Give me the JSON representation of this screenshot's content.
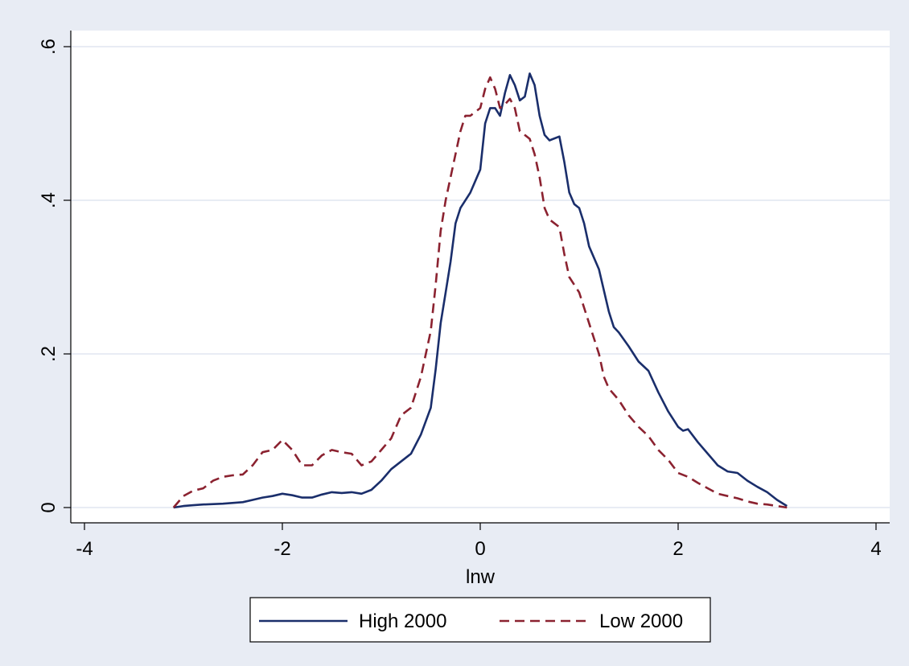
{
  "chart_data": {
    "type": "line",
    "title": "",
    "xlabel": "lnw",
    "ylabel": "",
    "xlim": [
      -4,
      4
    ],
    "ylim": [
      0,
      0.6
    ],
    "x_ticks": [
      -4,
      -2,
      0,
      2,
      4
    ],
    "x_tick_labels": [
      "-4",
      "-2",
      "0",
      "2",
      "4"
    ],
    "y_ticks": [
      0,
      0.2,
      0.4,
      0.6
    ],
    "y_tick_labels": [
      "0",
      ".2",
      ".4",
      ".6"
    ],
    "grid": "horizontal",
    "legend_position": "bottom",
    "series": [
      {
        "name": "High 2000",
        "color": "#1a2e6b",
        "style": "solid",
        "points": [
          [
            -3.1,
            0.0
          ],
          [
            -3.0,
            0.002
          ],
          [
            -2.9,
            0.003
          ],
          [
            -2.8,
            0.004
          ],
          [
            -2.6,
            0.005
          ],
          [
            -2.4,
            0.007
          ],
          [
            -2.3,
            0.01
          ],
          [
            -2.2,
            0.013
          ],
          [
            -2.1,
            0.015
          ],
          [
            -2.0,
            0.018
          ],
          [
            -1.9,
            0.016
          ],
          [
            -1.8,
            0.013
          ],
          [
            -1.7,
            0.013
          ],
          [
            -1.6,
            0.017
          ],
          [
            -1.5,
            0.02
          ],
          [
            -1.4,
            0.019
          ],
          [
            -1.3,
            0.02
          ],
          [
            -1.2,
            0.018
          ],
          [
            -1.1,
            0.023
          ],
          [
            -1.0,
            0.035
          ],
          [
            -0.9,
            0.05
          ],
          [
            -0.8,
            0.06
          ],
          [
            -0.7,
            0.07
          ],
          [
            -0.6,
            0.095
          ],
          [
            -0.5,
            0.13
          ],
          [
            -0.45,
            0.18
          ],
          [
            -0.4,
            0.24
          ],
          [
            -0.35,
            0.28
          ],
          [
            -0.3,
            0.32
          ],
          [
            -0.25,
            0.37
          ],
          [
            -0.2,
            0.39
          ],
          [
            -0.1,
            0.41
          ],
          [
            0.0,
            0.44
          ],
          [
            0.05,
            0.5
          ],
          [
            0.1,
            0.52
          ],
          [
            0.15,
            0.52
          ],
          [
            0.2,
            0.51
          ],
          [
            0.25,
            0.54
          ],
          [
            0.3,
            0.563
          ],
          [
            0.35,
            0.55
          ],
          [
            0.4,
            0.53
          ],
          [
            0.45,
            0.535
          ],
          [
            0.5,
            0.565
          ],
          [
            0.55,
            0.55
          ],
          [
            0.6,
            0.51
          ],
          [
            0.65,
            0.485
          ],
          [
            0.7,
            0.478
          ],
          [
            0.8,
            0.483
          ],
          [
            0.85,
            0.45
          ],
          [
            0.9,
            0.41
          ],
          [
            0.95,
            0.395
          ],
          [
            1.0,
            0.39
          ],
          [
            1.05,
            0.37
          ],
          [
            1.1,
            0.34
          ],
          [
            1.2,
            0.31
          ],
          [
            1.3,
            0.255
          ],
          [
            1.35,
            0.235
          ],
          [
            1.4,
            0.228
          ],
          [
            1.5,
            0.21
          ],
          [
            1.6,
            0.19
          ],
          [
            1.7,
            0.178
          ],
          [
            1.8,
            0.15
          ],
          [
            1.9,
            0.125
          ],
          [
            2.0,
            0.105
          ],
          [
            2.05,
            0.1
          ],
          [
            2.1,
            0.102
          ],
          [
            2.2,
            0.085
          ],
          [
            2.3,
            0.07
          ],
          [
            2.4,
            0.055
          ],
          [
            2.5,
            0.047
          ],
          [
            2.6,
            0.045
          ],
          [
            2.7,
            0.035
          ],
          [
            2.8,
            0.027
          ],
          [
            2.9,
            0.02
          ],
          [
            3.0,
            0.01
          ],
          [
            3.1,
            0.002
          ]
        ]
      },
      {
        "name": "Low 2000",
        "color": "#8b2230",
        "style": "dashed",
        "points": [
          [
            -3.1,
            0.0
          ],
          [
            -3.0,
            0.015
          ],
          [
            -2.9,
            0.022
          ],
          [
            -2.8,
            0.025
          ],
          [
            -2.7,
            0.035
          ],
          [
            -2.6,
            0.04
          ],
          [
            -2.5,
            0.042
          ],
          [
            -2.4,
            0.043
          ],
          [
            -2.3,
            0.055
          ],
          [
            -2.2,
            0.072
          ],
          [
            -2.1,
            0.075
          ],
          [
            -2.0,
            0.088
          ],
          [
            -1.9,
            0.075
          ],
          [
            -1.8,
            0.055
          ],
          [
            -1.7,
            0.055
          ],
          [
            -1.6,
            0.068
          ],
          [
            -1.5,
            0.075
          ],
          [
            -1.4,
            0.072
          ],
          [
            -1.3,
            0.07
          ],
          [
            -1.2,
            0.055
          ],
          [
            -1.1,
            0.06
          ],
          [
            -1.0,
            0.075
          ],
          [
            -0.9,
            0.09
          ],
          [
            -0.8,
            0.12
          ],
          [
            -0.7,
            0.13
          ],
          [
            -0.6,
            0.17
          ],
          [
            -0.5,
            0.23
          ],
          [
            -0.45,
            0.29
          ],
          [
            -0.4,
            0.36
          ],
          [
            -0.35,
            0.4
          ],
          [
            -0.3,
            0.43
          ],
          [
            -0.2,
            0.49
          ],
          [
            -0.15,
            0.51
          ],
          [
            -0.1,
            0.51
          ],
          [
            0.0,
            0.52
          ],
          [
            0.05,
            0.545
          ],
          [
            0.1,
            0.56
          ],
          [
            0.15,
            0.545
          ],
          [
            0.2,
            0.52
          ],
          [
            0.25,
            0.525
          ],
          [
            0.3,
            0.532
          ],
          [
            0.35,
            0.52
          ],
          [
            0.4,
            0.49
          ],
          [
            0.45,
            0.485
          ],
          [
            0.5,
            0.48
          ],
          [
            0.55,
            0.46
          ],
          [
            0.6,
            0.43
          ],
          [
            0.65,
            0.39
          ],
          [
            0.7,
            0.375
          ],
          [
            0.8,
            0.365
          ],
          [
            0.85,
            0.33
          ],
          [
            0.9,
            0.3
          ],
          [
            0.95,
            0.29
          ],
          [
            1.0,
            0.28
          ],
          [
            1.1,
            0.24
          ],
          [
            1.2,
            0.2
          ],
          [
            1.25,
            0.17
          ],
          [
            1.3,
            0.155
          ],
          [
            1.4,
            0.14
          ],
          [
            1.5,
            0.12
          ],
          [
            1.6,
            0.105
          ],
          [
            1.7,
            0.093
          ],
          [
            1.8,
            0.075
          ],
          [
            1.9,
            0.062
          ],
          [
            2.0,
            0.045
          ],
          [
            2.1,
            0.04
          ],
          [
            2.2,
            0.032
          ],
          [
            2.3,
            0.025
          ],
          [
            2.4,
            0.018
          ],
          [
            2.5,
            0.015
          ],
          [
            2.6,
            0.012
          ],
          [
            2.7,
            0.008
          ],
          [
            2.8,
            0.005
          ],
          [
            2.9,
            0.004
          ],
          [
            3.0,
            0.002
          ],
          [
            3.1,
            0.0
          ]
        ]
      }
    ]
  }
}
